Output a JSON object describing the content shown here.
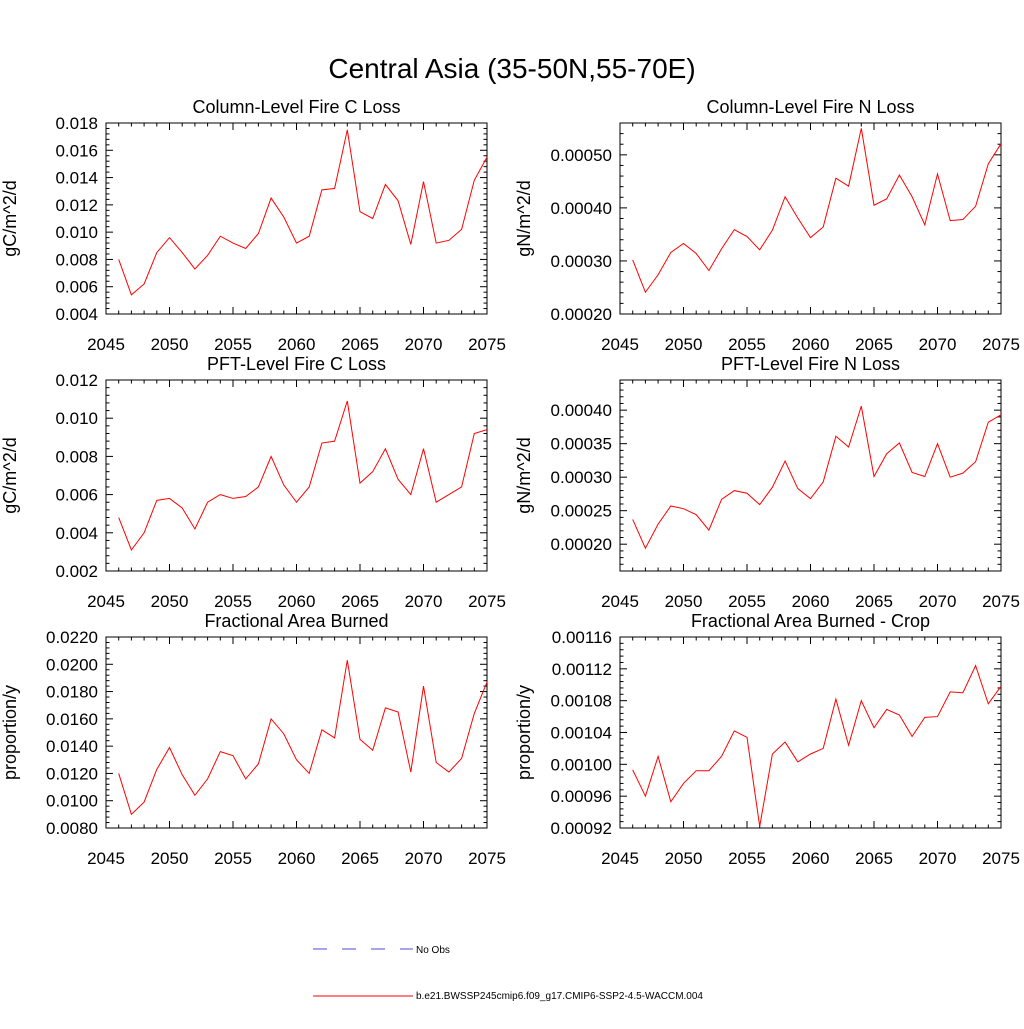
{
  "figure_title": "Central Asia (35-50N,55-70E)",
  "legend": {
    "entries": [
      {
        "label": "No Obs",
        "color": "#4b4bd6",
        "style": "dashed"
      },
      {
        "label": "b.e21.BWSSP245cmip6.f09_g17.CMIP6-SSP2-4.5-WACCM.004",
        "color": "#ff0000",
        "style": "solid"
      }
    ]
  },
  "chart_data": [
    {
      "type": "line",
      "title": "Column-Level Fire C Loss",
      "ylabel": "gC/m^2/d",
      "xlim": [
        2045,
        2075
      ],
      "ylim": [
        0.004,
        0.018
      ],
      "xticks": [
        "2045",
        "2050",
        "2055",
        "2060",
        "2065",
        "2070",
        "2075"
      ],
      "yticks": [
        "0.004",
        "0.006",
        "0.008",
        "0.010",
        "0.012",
        "0.014",
        "0.016",
        "0.018"
      ],
      "x": [
        2046,
        2047,
        2048,
        2049,
        2050,
        2051,
        2052,
        2053,
        2054,
        2055,
        2056,
        2057,
        2058,
        2059,
        2060,
        2061,
        2062,
        2063,
        2064,
        2065,
        2066,
        2067,
        2068,
        2069,
        2070,
        2071,
        2072,
        2073,
        2074,
        2075
      ],
      "series": [
        {
          "name": "b.e21.BWSSP245cmip6.f09_g17.CMIP6-SSP2-4.5-WACCM.004",
          "color": "#ff0000",
          "values": [
            0.008,
            0.0054,
            0.0062,
            0.0085,
            0.0096,
            0.0085,
            0.0073,
            0.0083,
            0.0097,
            0.0092,
            0.0088,
            0.0099,
            0.0125,
            0.0111,
            0.0092,
            0.0097,
            0.0131,
            0.0132,
            0.0175,
            0.0115,
            0.011,
            0.0135,
            0.0123,
            0.0091,
            0.0137,
            0.0092,
            0.0094,
            0.0102,
            0.0138,
            0.0155
          ]
        }
      ]
    },
    {
      "type": "line",
      "title": "Column-Level Fire N Loss",
      "ylabel": "gN/m^2/d",
      "xlim": [
        2045,
        2075
      ],
      "ylim": [
        0.0002,
        0.00056
      ],
      "xticks": [
        "2045",
        "2050",
        "2055",
        "2060",
        "2065",
        "2070",
        "2075"
      ],
      "yticks": [
        "0.00020",
        "0.00030",
        "0.00040",
        "0.00050"
      ],
      "x": [
        2046,
        2047,
        2048,
        2049,
        2050,
        2051,
        2052,
        2053,
        2054,
        2055,
        2056,
        2057,
        2058,
        2059,
        2060,
        2061,
        2062,
        2063,
        2064,
        2065,
        2066,
        2067,
        2068,
        2069,
        2070,
        2071,
        2072,
        2073,
        2074,
        2075
      ],
      "series": [
        {
          "name": "b.e21.BWSSP245cmip6.f09_g17.CMIP6-SSP2-4.5-WACCM.004",
          "color": "#ff0000",
          "values": [
            0.000302,
            0.000241,
            0.000274,
            0.000316,
            0.000333,
            0.000314,
            0.000282,
            0.000323,
            0.000359,
            0.000346,
            0.000321,
            0.000358,
            0.000421,
            0.000381,
            0.000344,
            0.000364,
            0.000456,
            0.000441,
            0.00055,
            0.000405,
            0.000417,
            0.000462,
            0.000421,
            0.000368,
            0.000464,
            0.000376,
            0.000378,
            0.000403,
            0.000483,
            0.000521
          ]
        }
      ]
    },
    {
      "type": "line",
      "title": "PFT-Level Fire C Loss",
      "ylabel": "gC/m^2/d",
      "xlim": [
        2045,
        2075
      ],
      "ylim": [
        0.002,
        0.012
      ],
      "xticks": [
        "2045",
        "2050",
        "2055",
        "2060",
        "2065",
        "2070",
        "2075"
      ],
      "yticks": [
        "0.002",
        "0.004",
        "0.006",
        "0.008",
        "0.010",
        "0.012"
      ],
      "x": [
        2046,
        2047,
        2048,
        2049,
        2050,
        2051,
        2052,
        2053,
        2054,
        2055,
        2056,
        2057,
        2058,
        2059,
        2060,
        2061,
        2062,
        2063,
        2064,
        2065,
        2066,
        2067,
        2068,
        2069,
        2070,
        2071,
        2072,
        2073,
        2074,
        2075
      ],
      "series": [
        {
          "name": "b.e21.BWSSP245cmip6.f09_g17.CMIP6-SSP2-4.5-WACCM.004",
          "color": "#ff0000",
          "values": [
            0.0048,
            0.0031,
            0.004,
            0.0057,
            0.0058,
            0.0053,
            0.0042,
            0.0056,
            0.006,
            0.0058,
            0.0059,
            0.0064,
            0.008,
            0.0065,
            0.0056,
            0.0064,
            0.0087,
            0.0088,
            0.0109,
            0.0066,
            0.0072,
            0.0084,
            0.0068,
            0.006,
            0.0084,
            0.0056,
            0.006,
            0.0064,
            0.0092,
            0.0094
          ]
        }
      ]
    },
    {
      "type": "line",
      "title": "PFT-Level Fire N Loss",
      "ylabel": "gN/m^2/d",
      "xlim": [
        2045,
        2075
      ],
      "ylim": [
        0.00016,
        0.000445
      ],
      "xticks": [
        "2045",
        "2050",
        "2055",
        "2060",
        "2065",
        "2070",
        "2075"
      ],
      "yticks": [
        "0.00020",
        "0.00025",
        "0.00030",
        "0.00035",
        "0.00040"
      ],
      "x": [
        2046,
        2047,
        2048,
        2049,
        2050,
        2051,
        2052,
        2053,
        2054,
        2055,
        2056,
        2057,
        2058,
        2059,
        2060,
        2061,
        2062,
        2063,
        2064,
        2065,
        2066,
        2067,
        2068,
        2069,
        2070,
        2071,
        2072,
        2073,
        2074,
        2075
      ],
      "series": [
        {
          "name": "b.e21.BWSSP245cmip6.f09_g17.CMIP6-SSP2-4.5-WACCM.004",
          "color": "#ff0000",
          "values": [
            0.000237,
            0.000194,
            0.00023,
            0.000257,
            0.000253,
            0.000244,
            0.000221,
            0.000267,
            0.00028,
            0.000276,
            0.000259,
            0.000285,
            0.000324,
            0.000283,
            0.000268,
            0.000293,
            0.000361,
            0.000345,
            0.000406,
            0.000301,
            0.000335,
            0.000351,
            0.000307,
            0.000301,
            0.00035,
            0.0003,
            0.000306,
            0.000323,
            0.000382,
            0.000393
          ]
        }
      ]
    },
    {
      "type": "line",
      "title": "Fractional Area Burned",
      "ylabel": "proportion/y",
      "xlim": [
        2045,
        2075
      ],
      "ylim": [
        0.008,
        0.022
      ],
      "xticks": [
        "2045",
        "2050",
        "2055",
        "2060",
        "2065",
        "2070",
        "2075"
      ],
      "yticks": [
        "0.0080",
        "0.0100",
        "0.0120",
        "0.0140",
        "0.0160",
        "0.0180",
        "0.0200",
        "0.0220"
      ],
      "x": [
        2046,
        2047,
        2048,
        2049,
        2050,
        2051,
        2052,
        2053,
        2054,
        2055,
        2056,
        2057,
        2058,
        2059,
        2060,
        2061,
        2062,
        2063,
        2064,
        2065,
        2066,
        2067,
        2068,
        2069,
        2070,
        2071,
        2072,
        2073,
        2074,
        2075
      ],
      "series": [
        {
          "name": "b.e21.BWSSP245cmip6.f09_g17.CMIP6-SSP2-4.5-WACCM.004",
          "color": "#ff0000",
          "values": [
            0.012,
            0.009,
            0.0099,
            0.0123,
            0.0139,
            0.0119,
            0.0104,
            0.0116,
            0.0136,
            0.0133,
            0.0116,
            0.0127,
            0.016,
            0.0149,
            0.013,
            0.012,
            0.0152,
            0.0146,
            0.0203,
            0.0145,
            0.0137,
            0.0168,
            0.0165,
            0.0121,
            0.0184,
            0.0128,
            0.0121,
            0.0131,
            0.0164,
            0.0187
          ]
        }
      ]
    },
    {
      "type": "line",
      "title": "Fractional Area Burned - Crop",
      "ylabel": "proportion/y",
      "xlim": [
        2045,
        2075
      ],
      "ylim": [
        0.00092,
        0.00116
      ],
      "xticks": [
        "2045",
        "2050",
        "2055",
        "2060",
        "2065",
        "2070",
        "2075"
      ],
      "yticks": [
        "0.00092",
        "0.00096",
        "0.00100",
        "0.00104",
        "0.00108",
        "0.00112",
        "0.00116"
      ],
      "x": [
        2046,
        2047,
        2048,
        2049,
        2050,
        2051,
        2052,
        2053,
        2054,
        2055,
        2056,
        2057,
        2058,
        2059,
        2060,
        2061,
        2062,
        2063,
        2064,
        2065,
        2066,
        2067,
        2068,
        2069,
        2070,
        2071,
        2072,
        2073,
        2074,
        2075
      ],
      "series": [
        {
          "name": "b.e21.BWSSP245cmip6.f09_g17.CMIP6-SSP2-4.5-WACCM.004",
          "color": "#ff0000",
          "values": [
            0.000993,
            0.00096,
            0.00101,
            0.000953,
            0.000976,
            0.000992,
            0.000992,
            0.00101,
            0.001042,
            0.001034,
            0.000922,
            0.001013,
            0.001028,
            0.001003,
            0.001013,
            0.00102,
            0.001082,
            0.001024,
            0.00108,
            0.001046,
            0.001069,
            0.001062,
            0.001035,
            0.001059,
            0.00106,
            0.001091,
            0.00109,
            0.001124,
            0.001076,
            0.001098
          ]
        }
      ]
    }
  ]
}
